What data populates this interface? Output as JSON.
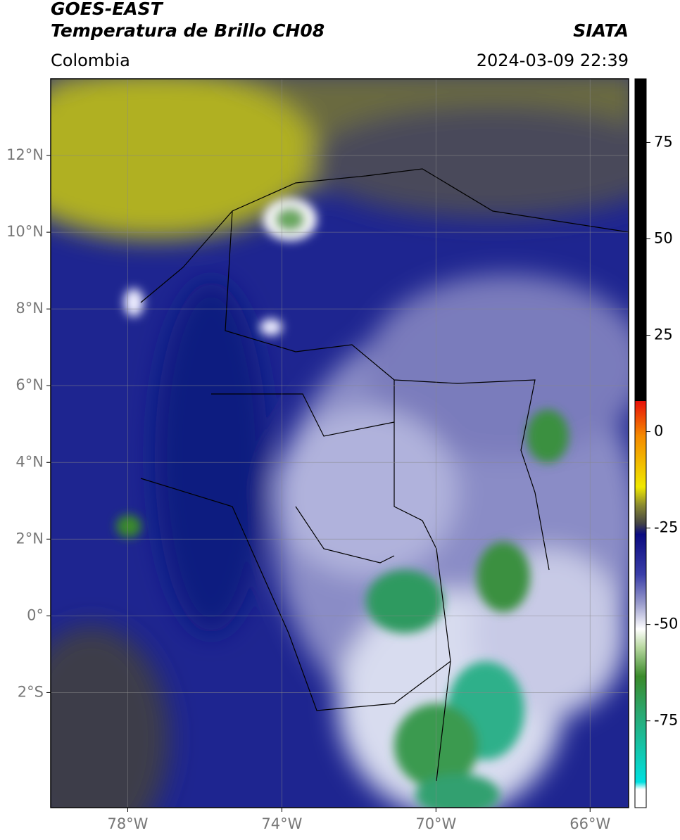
{
  "header": {
    "title": "GOES-EAST",
    "subtitle": "Temperatura de Brillo CH08",
    "source": "SIATA",
    "region": "Colombia",
    "datetime": "2024-03-09 22:39"
  },
  "map": {
    "xlim": [
      -80,
      -65
    ],
    "ylim": [
      -5,
      14
    ],
    "grid": true,
    "xticks": [
      {
        "value": -78,
        "label": "78°W"
      },
      {
        "value": -74,
        "label": "74°W"
      },
      {
        "value": -70,
        "label": "70°W"
      },
      {
        "value": -66,
        "label": "66°W"
      }
    ],
    "yticks": [
      {
        "value": 12,
        "label": "12°N"
      },
      {
        "value": 10,
        "label": "10°N"
      },
      {
        "value": 8,
        "label": "8°N"
      },
      {
        "value": 6,
        "label": "6°N"
      },
      {
        "value": 4,
        "label": "4°N"
      },
      {
        "value": 2,
        "label": "2°N"
      },
      {
        "value": 0,
        "label": "0°"
      },
      {
        "value": -2,
        "label": "2°S"
      }
    ]
  },
  "colorbar": {
    "lim": [
      -97.5,
      91.5
    ],
    "ticks": [
      75,
      50,
      25,
      0,
      -25,
      -50,
      -75
    ]
  }
}
